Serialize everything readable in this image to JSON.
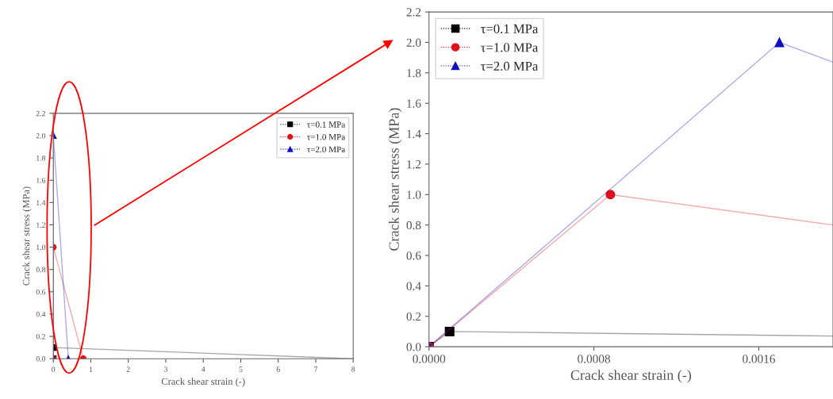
{
  "chart_data": [
    {
      "type": "line",
      "xlabel": "Crack shear strain (-)",
      "ylabel": "Crack shear stress (MPa)",
      "xlim": [
        0,
        8
      ],
      "xticks": [
        0,
        1,
        2,
        3,
        4,
        5,
        6,
        7,
        8
      ],
      "ylim": [
        0,
        2.2
      ],
      "yticks": [
        {
          "value": 0,
          "label": "0.0"
        },
        0.2,
        0.4,
        0.6,
        0.8,
        {
          "value": 1,
          "label": "1.0"
        },
        1.2,
        1.4,
        1.6,
        1.8,
        {
          "value": 2,
          "label": "2.0"
        },
        2.2
      ],
      "legend": "top right",
      "grid": false,
      "series": [
        {
          "name": "τ=0.1 MPa",
          "color": "#000000",
          "marker": "square",
          "x": [
            0,
            0.0001,
            8
          ],
          "values": [
            0,
            0.1,
            0
          ]
        },
        {
          "name": "τ=1.0 MPa",
          "color": "#e0101a",
          "marker": "circle",
          "x": [
            0,
            0.00088,
            0.8
          ],
          "values": [
            0,
            1.0,
            0
          ]
        },
        {
          "name": "τ=2.0 MPa",
          "color": "#1010c0",
          "marker": "triangle",
          "x": [
            0,
            0.0017,
            0.4
          ],
          "values": [
            0,
            2.0,
            0
          ]
        }
      ]
    },
    {
      "type": "line",
      "xlabel": "Crack shear strain (-)",
      "ylabel": "Crack shear stress (MPa)",
      "xlim": [
        0,
        0.00196
      ],
      "xticks": [
        {
          "value": 0,
          "label": "0.0000"
        },
        0.0008,
        0.0016
      ],
      "ylim": [
        0,
        2.2
      ],
      "yticks": [
        {
          "value": 0,
          "label": "0.0"
        },
        0.2,
        0.4,
        0.6,
        0.8,
        {
          "value": 1,
          "label": "1.0"
        },
        1.2,
        1.4,
        1.6,
        1.8,
        {
          "value": 2,
          "label": "2.0"
        },
        2.2
      ],
      "legend": "top left",
      "grid": false,
      "series": [
        {
          "name": "τ=0.1 MPa",
          "color": "#000000",
          "marker": "square",
          "x": [
            0,
            0.0001,
            0.00196
          ],
          "values": [
            0,
            0.1,
            0.07
          ]
        },
        {
          "name": "τ=1.0 MPa",
          "color": "#e0101a",
          "marker": "circle",
          "x": [
            0,
            0.00088,
            0.00196
          ],
          "values": [
            0,
            1.0,
            0.8
          ]
        },
        {
          "name": "τ=2.0 MPa",
          "color": "#1010c0",
          "marker": "triangle",
          "x": [
            0,
            0.0017,
            0.00196
          ],
          "values": [
            0,
            2.0,
            1.87
          ]
        }
      ]
    }
  ]
}
